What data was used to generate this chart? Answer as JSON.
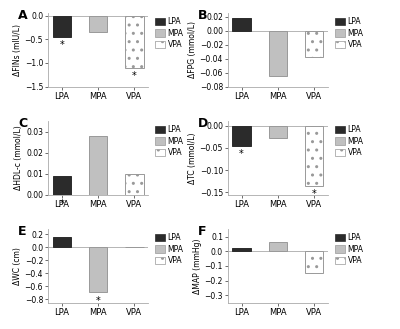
{
  "panels": [
    {
      "label": "A",
      "ylabel": "ΔFINs (mIU/L)",
      "ylim": [
        -1.5,
        0.05
      ],
      "yticks": [
        -1.5,
        -1.0,
        -0.5,
        0.0
      ],
      "values": {
        "LPA": -0.45,
        "MPA": -0.35,
        "VPA": -1.1
      },
      "stars": {
        "LPA": true,
        "MPA": false,
        "VPA": true
      },
      "star_y": {
        "LPA": -0.52,
        "MPA": null,
        "VPA": -1.18
      }
    },
    {
      "label": "B",
      "ylabel": "ΔFPG (mmol/L)",
      "ylim": [
        -0.08,
        0.025
      ],
      "yticks": [
        -0.08,
        -0.06,
        -0.04,
        -0.02,
        0.0,
        0.02
      ],
      "values": {
        "LPA": 0.018,
        "MPA": -0.065,
        "VPA": -0.038
      },
      "stars": {
        "LPA": false,
        "MPA": false,
        "VPA": false
      },
      "star_y": {
        "LPA": null,
        "MPA": null,
        "VPA": null
      }
    },
    {
      "label": "C",
      "ylabel": "ΔHDL-c (mmol/L)",
      "ylim": [
        0.0,
        0.035
      ],
      "yticks": [
        0.0,
        0.01,
        0.02,
        0.03
      ],
      "values": {
        "LPA": 0.009,
        "MPA": 0.028,
        "VPA": 0.01
      },
      "stars": {
        "LPA": true,
        "MPA": false,
        "VPA": false
      },
      "star_y": {
        "LPA": -0.002,
        "MPA": null,
        "VPA": null
      }
    },
    {
      "label": "D",
      "ylabel": "ΔTC (mmol/L)",
      "ylim": [
        -0.155,
        0.01
      ],
      "yticks": [
        -0.15,
        -0.1,
        -0.05,
        0.0
      ],
      "values": {
        "LPA": -0.045,
        "MPA": -0.028,
        "VPA": -0.135
      },
      "stars": {
        "LPA": true,
        "MPA": false,
        "VPA": true
      },
      "star_y": {
        "LPA": -0.053,
        "MPA": null,
        "VPA": -0.143
      }
    },
    {
      "label": "E",
      "ylabel": "ΔWC (cm)",
      "ylim": [
        -0.85,
        0.28
      ],
      "yticks": [
        -0.8,
        -0.6,
        -0.4,
        -0.2,
        0.0,
        0.2
      ],
      "values": {
        "LPA": 0.16,
        "MPA": -0.68,
        "VPA": 0.0
      },
      "stars": {
        "LPA": false,
        "MPA": true,
        "VPA": false
      },
      "star_y": {
        "LPA": null,
        "MPA": -0.75,
        "VPA": null
      }
    },
    {
      "label": "F",
      "ylabel": "ΔMAP (mmHg)",
      "ylim": [
        -0.35,
        0.15
      ],
      "yticks": [
        -0.3,
        -0.2,
        -0.1,
        0.0,
        0.1
      ],
      "values": {
        "LPA": 0.02,
        "MPA": 0.06,
        "VPA": -0.15
      },
      "stars": {
        "LPA": false,
        "MPA": false,
        "VPA": false
      },
      "star_y": {
        "LPA": null,
        "MPA": null,
        "VPA": null
      }
    }
  ],
  "categories": [
    "LPA",
    "MPA",
    "VPA"
  ],
  "bar_colors": [
    "#2b2b2b",
    "#c0c0c0",
    "#ffffff"
  ],
  "bar_hatches": [
    "",
    "",
    ".."
  ],
  "bar_edgecolors": [
    "#2b2b2b",
    "#999999",
    "#999999"
  ],
  "bar_width": 0.5,
  "legend_labels": [
    "LPA",
    "MPA",
    "VPA"
  ],
  "has_legend": [
    true,
    true,
    true,
    true,
    true,
    true
  ],
  "background_color": "#ffffff",
  "spine_color": "#aaaaaa",
  "tick_color": "#555555"
}
